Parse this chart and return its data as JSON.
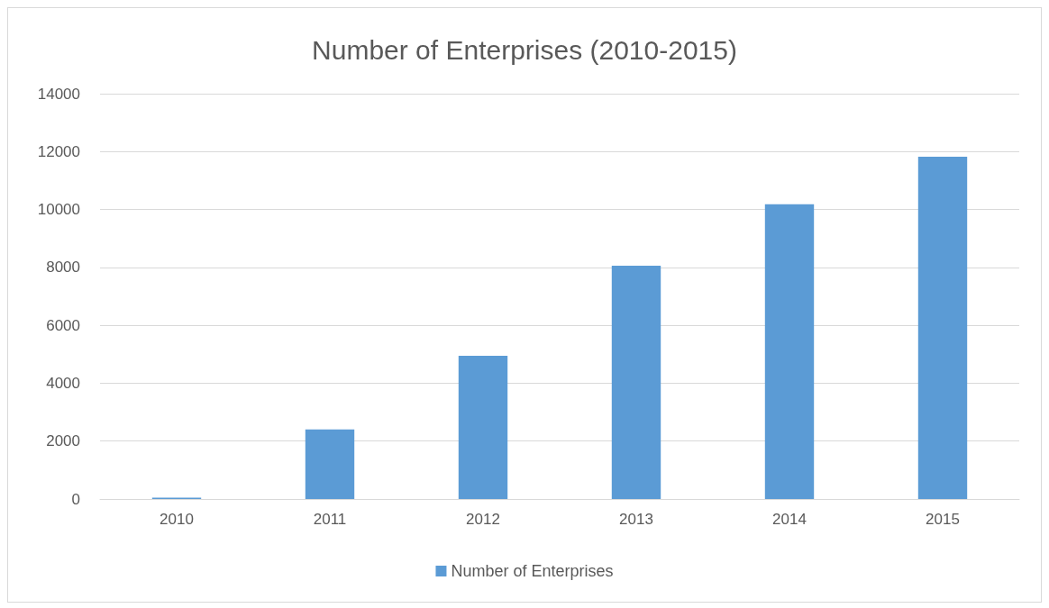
{
  "chart_data": {
    "type": "bar",
    "title": "Number of Enterprises (2010-2015)",
    "categories": [
      "2010",
      "2011",
      "2012",
      "2013",
      "2014",
      "2015"
    ],
    "series": [
      {
        "name": "Number of Enterprises",
        "color": "#5b9bd5",
        "values": [
          50,
          2400,
          4950,
          8060,
          10180,
          11820
        ]
      }
    ],
    "ylim": [
      0,
      14000
    ],
    "yticks": [
      0,
      2000,
      4000,
      6000,
      8000,
      10000,
      12000,
      14000
    ],
    "grid": "y",
    "legend": "bottom"
  }
}
